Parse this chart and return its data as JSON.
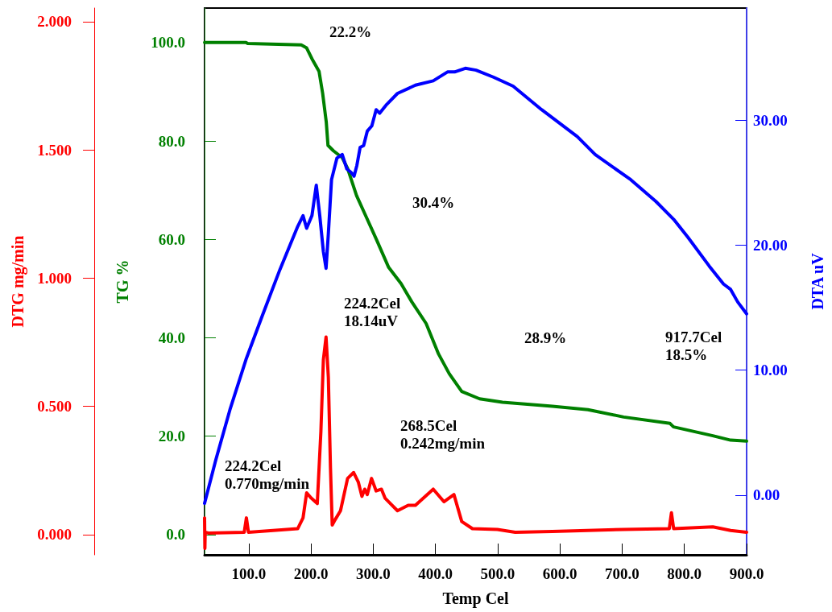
{
  "chart_data": {
    "type": "line",
    "xlabel": "Temp Cel",
    "ylabel": "TG %",
    "y2label": "DTA uV",
    "y3label": "DTG mg/min",
    "xlim": [
      29,
      900
    ],
    "xticks": [
      {
        "value": 100,
        "label": "100.0"
      },
      {
        "value": 200,
        "label": "200.0"
      },
      {
        "value": 300,
        "label": "300.0"
      },
      {
        "value": 400,
        "label": "400.0"
      },
      {
        "value": 500,
        "label": "500.0"
      },
      {
        "value": 600,
        "label": "600.0"
      },
      {
        "value": 700,
        "label": "700.0"
      },
      {
        "value": 800,
        "label": "800.0"
      },
      {
        "value": 900,
        "label": "900.0"
      }
    ],
    "ylim": [
      -4.1,
      107
    ],
    "yticks": [
      {
        "value": 0,
        "label": "0.0"
      },
      {
        "value": 20,
        "label": "20.0"
      },
      {
        "value": 40,
        "label": "40.0"
      },
      {
        "value": 60,
        "label": "60.0"
      },
      {
        "value": 80,
        "label": "80.0"
      },
      {
        "value": 100,
        "label": "100.0"
      }
    ],
    "y2lim": [
      -4.78,
      38.96
    ],
    "y2ticks": [
      {
        "value": 0,
        "label": "0.00"
      },
      {
        "value": 10,
        "label": "10.00"
      },
      {
        "value": 20,
        "label": "20.00"
      },
      {
        "value": 30,
        "label": "30.00"
      }
    ],
    "y3lim": [
      -0.079,
      2.053
    ],
    "y3ticks": [
      {
        "value": 0,
        "label": "0.000"
      },
      {
        "value": 0.5,
        "label": "0.500"
      },
      {
        "value": 1,
        "label": "1.000"
      },
      {
        "value": 1.5,
        "label": "1.500"
      },
      {
        "value": 2,
        "label": "2.000"
      }
    ],
    "grid": false,
    "marker": "none",
    "line_style": "solid",
    "series": [
      {
        "color": "#008000",
        "x": [
          29,
          95.5,
          98.3,
          184.3,
          193,
          201.5,
          213,
          218.7,
          224.5,
          227.3,
          236,
          250.2,
          258.8,
          273.2,
          287.5,
          304.7,
          324.8,
          344.8,
          362,
          385,
          405,
          422.2,
          442.2,
          470.9,
          507.6,
          587.8,
          645,
          702.4,
          776.9,
          782.5,
          845.7,
          874.3,
          900
        ],
        "values": [
          100.0,
          100.0,
          99.8,
          99.5,
          98.9,
          96.7,
          94.1,
          89.7,
          83.9,
          79.1,
          78.0,
          76.6,
          74.4,
          68.9,
          64.9,
          60.1,
          54.3,
          51.0,
          47.3,
          42.9,
          36.7,
          32.7,
          29.1,
          27.6,
          26.9,
          26.1,
          25.4,
          23.9,
          22.6,
          21.9,
          20.1,
          19.2,
          19.0
        ]
      },
      {
        "color": "#0000ff",
        "axis": "y2",
        "x": [
          29,
          46.9,
          69.7,
          95.5,
          121.3,
          150,
          178.6,
          187.2,
          193,
          201.5,
          208.5,
          214.1,
          219.9,
          224.2,
          227.9,
          233,
          241.6,
          250.2,
          257.6,
          264.6,
          269.2,
          273.7,
          279,
          284.6,
          290.4,
          297.8,
          304.7,
          310.4,
          321.8,
          339,
          367.8,
          396.4,
          419.3,
          430.8,
          448,
          465.2,
          493.8,
          524.8,
          570.6,
          627.9,
          656.6,
          713.9,
          754,
          782.7,
          805.5,
          839.9,
          862.9,
          874.3,
          885.8,
          900
        ],
        "values": [
          -0.66,
          2.79,
          6.82,
          10.84,
          14.29,
          18.03,
          21.48,
          22.35,
          21.34,
          22.35,
          24.79,
          22.35,
          19.47,
          18.14,
          20.91,
          25.23,
          26.95,
          27.24,
          26.09,
          25.8,
          25.51,
          26.37,
          27.82,
          27.96,
          29.11,
          29.54,
          30.83,
          30.55,
          31.26,
          32.13,
          32.79,
          33.14,
          33.85,
          33.85,
          34.14,
          33.99,
          33.42,
          32.71,
          30.83,
          28.68,
          27.24,
          25.23,
          23.5,
          22.06,
          20.63,
          18.32,
          16.88,
          16.45,
          15.44,
          14.5
        ]
      },
      {
        "color": "#ff0000",
        "axis": "y3",
        "x": [
          29,
          29.5,
          30,
          35,
          92.7,
          96.2,
          99.5,
          178.6,
          187.2,
          193,
          200.4,
          210.1,
          215.9,
          219.9,
          224.2,
          227.9,
          231.3,
          234.1,
          238.8,
          247.4,
          258.8,
          268.5,
          276,
          281.8,
          286.4,
          290.4,
          297.3,
          304.7,
          313.2,
          319,
          327.6,
          339,
          356.2,
          367.8,
          396.4,
          413.6,
          429.7,
          442.2,
          459.4,
          499.5,
          528.2,
          587.8,
          702.4,
          775.7,
          779.2,
          782.7,
          845.7,
          874.3,
          900
        ],
        "values": [
          0.065,
          -0.054,
          0.009,
          0.006,
          0.009,
          0.065,
          0.009,
          0.023,
          0.065,
          0.163,
          0.142,
          0.121,
          0.402,
          0.682,
          0.77,
          0.612,
          0.261,
          0.037,
          0.058,
          0.093,
          0.219,
          0.242,
          0.205,
          0.149,
          0.177,
          0.156,
          0.219,
          0.17,
          0.177,
          0.142,
          0.121,
          0.093,
          0.114,
          0.114,
          0.177,
          0.128,
          0.156,
          0.051,
          0.023,
          0.02,
          0.009,
          0.012,
          0.02,
          0.023,
          0.085,
          0.023,
          0.03,
          0.016,
          0.009
        ]
      }
    ],
    "annotations": [
      "22.2%",
      "30.4%",
      "224.2Cel\n18.14uV",
      "28.9%",
      "917.7Cel\n18.5%",
      "268.5Cel\n0.242mg/min",
      "224.2Cel\n0.770mg/min"
    ]
  }
}
